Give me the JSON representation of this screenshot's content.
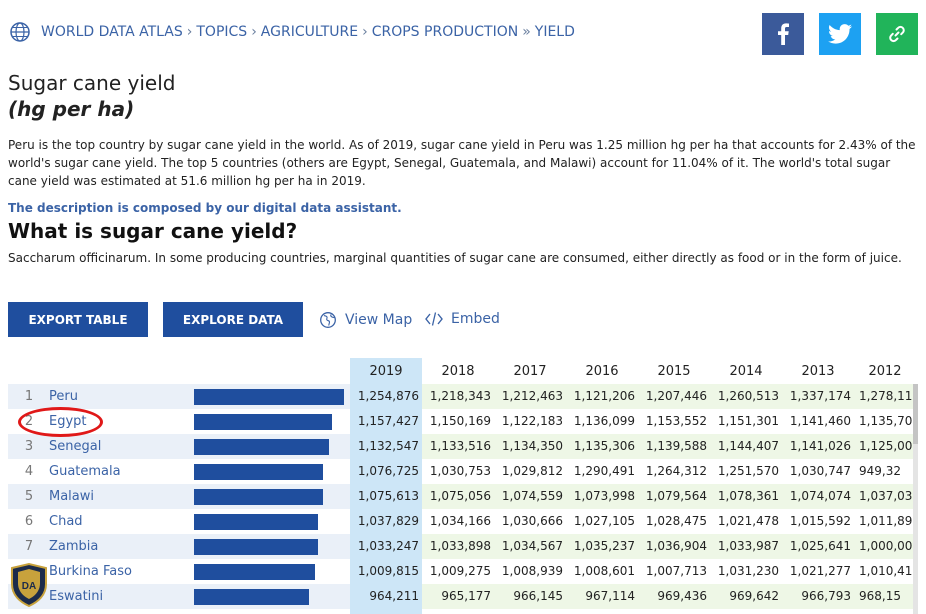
{
  "breadcrumb": {
    "icon": "globe-icon",
    "items": [
      "WORLD DATA ATLAS",
      "TOPICS",
      "AGRICULTURE",
      "CROPS PRODUCTION",
      "YIELD"
    ],
    "separators": [
      "›",
      "›",
      "›",
      "»"
    ]
  },
  "share": {
    "facebook_icon": "facebook-icon",
    "twitter_icon": "twitter-icon",
    "link_icon": "link-icon",
    "colors": {
      "facebook": "#3b5a9a",
      "twitter": "#1da1f2",
      "link": "#21b45a"
    }
  },
  "page": {
    "title": "Sugar cane yield",
    "unit": "(hg per ha)",
    "description": "Peru is the top country by sugar cane yield in the world. As of 2019, sugar cane yield in Peru was 1.25 million hg per ha that accounts for 2.43% of the world's sugar cane yield. The top 5 countries (others are Egypt, Senegal, Guatemala, and Malawi) account for 11.04% of it. The world's total sugar cane yield was estimated at 51.6 million hg per ha in 2019.",
    "assistant_note": "The description is composed by our digital data assistant.",
    "definition_heading": "What is sugar cane yield?",
    "definition": "Saccharum officinarum. In some producing countries, marginal quantities of sugar cane are consumed, either directly as food or in the form of juice."
  },
  "actions": {
    "export_label": "EXPORT TABLE",
    "explore_label": "EXPLORE DATA",
    "view_map_label": "View Map",
    "view_map_icon": "globe-icon",
    "embed_label": "Embed",
    "embed_icon": "code-icon"
  },
  "table": {
    "years": [
      "2019",
      "2018",
      "2017",
      "2016",
      "2015",
      "2014",
      "2013",
      "2012"
    ],
    "selected_year": "2019",
    "max_value": 1254876,
    "rows": [
      {
        "rank": "1",
        "country": "Peru",
        "value": 1254876,
        "values": [
          "1,254,876",
          "1,218,343",
          "1,212,463",
          "1,121,206",
          "1,207,446",
          "1,260,513",
          "1,337,174",
          "1,278,11"
        ]
      },
      {
        "rank": "2",
        "country": "Egypt",
        "value": 1157427,
        "values": [
          "1,157,427",
          "1,150,169",
          "1,122,183",
          "1,136,099",
          "1,153,552",
          "1,151,301",
          "1,141,460",
          "1,135,70"
        ]
      },
      {
        "rank": "3",
        "country": "Senegal",
        "value": 1132547,
        "values": [
          "1,132,547",
          "1,133,516",
          "1,134,350",
          "1,135,306",
          "1,139,588",
          "1,144,407",
          "1,141,026",
          "1,125,00"
        ]
      },
      {
        "rank": "4",
        "country": "Guatemala",
        "value": 1076725,
        "values": [
          "1,076,725",
          "1,030,753",
          "1,029,812",
          "1,290,491",
          "1,264,312",
          "1,251,570",
          "1,030,747",
          "949,32"
        ]
      },
      {
        "rank": "5",
        "country": "Malawi",
        "value": 1075613,
        "values": [
          "1,075,613",
          "1,075,056",
          "1,074,559",
          "1,073,998",
          "1,079,564",
          "1,078,361",
          "1,074,074",
          "1,037,03"
        ]
      },
      {
        "rank": "6",
        "country": "Chad",
        "value": 1037829,
        "values": [
          "1,037,829",
          "1,034,166",
          "1,030,666",
          "1,027,105",
          "1,028,475",
          "1,021,478",
          "1,015,592",
          "1,011,89"
        ]
      },
      {
        "rank": "7",
        "country": "Zambia",
        "value": 1033247,
        "values": [
          "1,033,247",
          "1,033,898",
          "1,034,567",
          "1,035,237",
          "1,036,904",
          "1,033,987",
          "1,025,641",
          "1,000,00"
        ]
      },
      {
        "rank": "8",
        "country": "Burkina Faso",
        "value": 1009815,
        "values": [
          "1,009,815",
          "1,009,275",
          "1,008,939",
          "1,008,601",
          "1,007,713",
          "1,031,230",
          "1,021,277",
          "1,010,41"
        ]
      },
      {
        "rank": "9",
        "country": "Eswatini",
        "value": 964211,
        "values": [
          "964,211",
          "965,177",
          "966,145",
          "967,114",
          "969,436",
          "969,642",
          "966,793",
          "968,15"
        ]
      }
    ]
  },
  "annotation": {
    "highlighted_country": "Egypt",
    "color": "#e01818"
  },
  "watermark": {
    "logo_text": "DA"
  }
}
